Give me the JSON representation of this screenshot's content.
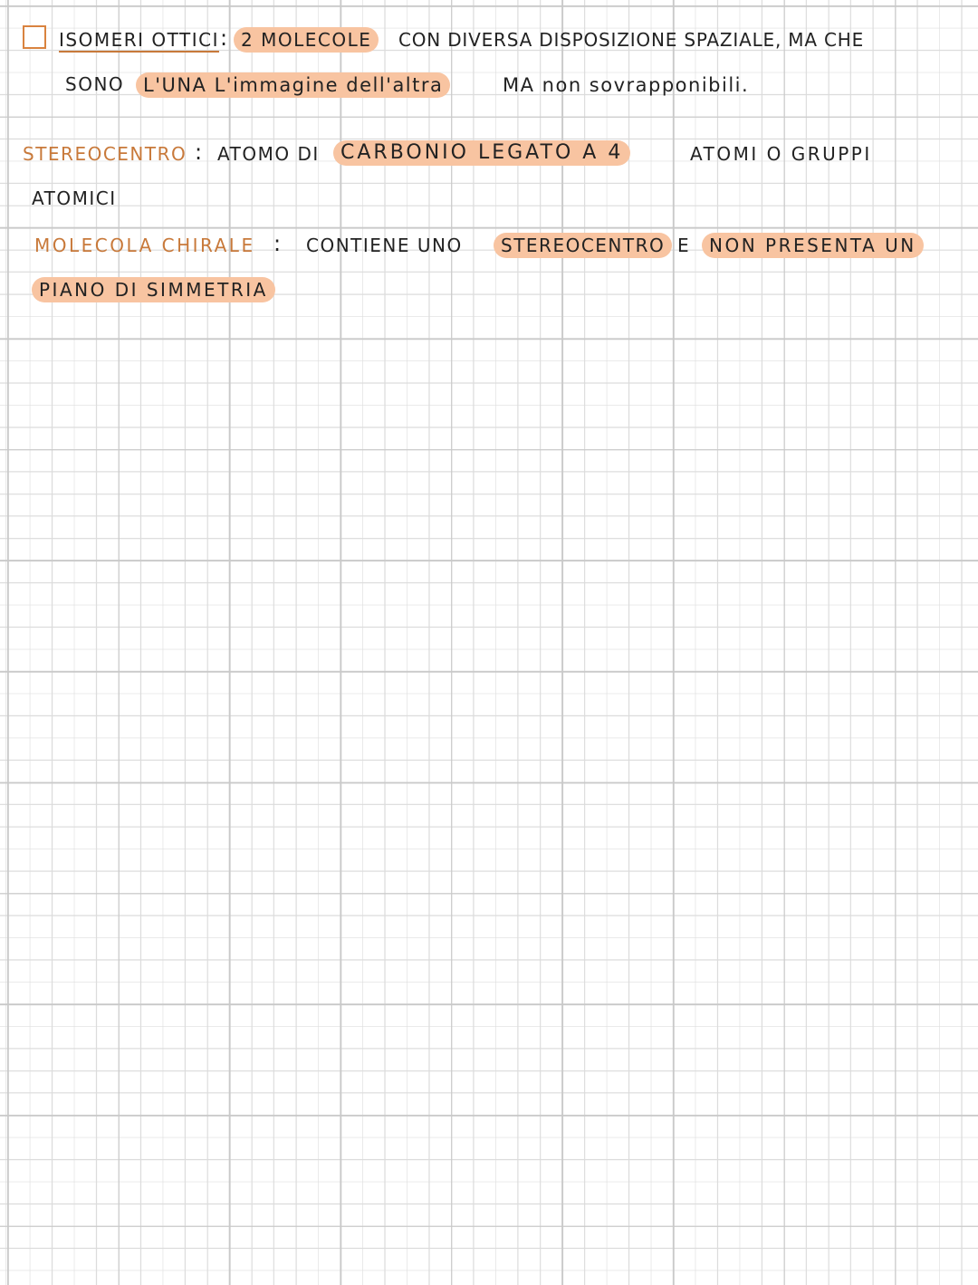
{
  "notes": [
    {
      "term": "ISOMERI OTTICI",
      "colon": ":",
      "lines": [
        [
          "2 MOLECOLE",
          "CON DIVERSA DISPOSIZIONE SPAZIALE, MA CHE"
        ],
        [
          "SONO",
          "L'UNA L'immagine dell'altra",
          "MA non sovrapponibili."
        ]
      ]
    },
    {
      "term": "STEREOCENTRO",
      "colon": ":",
      "lines": [
        [
          "ATOMO DI",
          "CARBONIO LEGATO A 4",
          "ATOMI O GRUPPI"
        ],
        [
          "ATOMICI"
        ]
      ]
    },
    {
      "term": "MOLECOLA CHIRALE",
      "colon": ":",
      "lines": [
        [
          "CONTIENE UNO",
          "STEREOCENTRO",
          "E",
          "NON PRESENTA UN"
        ],
        [
          "PIANO DI SIMMETRIA"
        ]
      ]
    }
  ]
}
